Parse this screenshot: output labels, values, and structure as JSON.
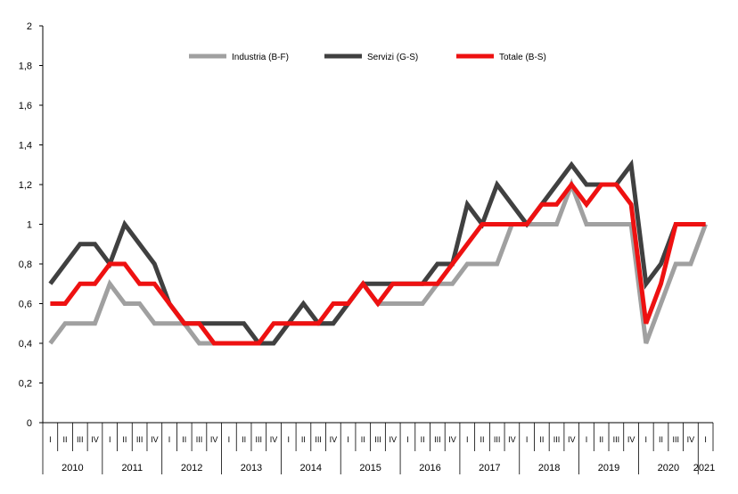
{
  "chart_data": {
    "type": "line",
    "ylim": [
      0,
      2
    ],
    "yticks": [
      "0",
      "0,2",
      "0,4",
      "0,6",
      "0,8",
      "1",
      "1,2",
      "1,4",
      "1,6",
      "1,8",
      "2"
    ],
    "years": [
      "2010",
      "2011",
      "2012",
      "2013",
      "2014",
      "2015",
      "2016",
      "2017",
      "2018",
      "2019",
      "2020",
      "2021"
    ],
    "quarters": [
      "I",
      "II",
      "III",
      "IV"
    ],
    "x": [
      "2010 I",
      "2010 II",
      "2010 III",
      "2010 IV",
      "2011 I",
      "2011 II",
      "2011 III",
      "2011 IV",
      "2012 I",
      "2012 II",
      "2012 III",
      "2012 IV",
      "2013 I",
      "2013 II",
      "2013 III",
      "2013 IV",
      "2014 I",
      "2014 II",
      "2014 III",
      "2014 IV",
      "2015 I",
      "2015 II",
      "2015 III",
      "2015 IV",
      "2016 I",
      "2016 II",
      "2016 III",
      "2016 IV",
      "2017 I",
      "2017 II",
      "2017 III",
      "2017 IV",
      "2018 I",
      "2018 II",
      "2018 III",
      "2018 IV",
      "2019 I",
      "2019 II",
      "2019 III",
      "2019 IV",
      "2020 I",
      "2020 II",
      "2020 III",
      "2020 IV",
      "2021 I"
    ],
    "legend_position": "top-center",
    "grid": false,
    "series": [
      {
        "name": "Industria (B-F)",
        "color": "#a0a0a0",
        "values": [
          0.4,
          0.5,
          0.5,
          0.5,
          0.7,
          0.6,
          0.6,
          0.5,
          0.5,
          0.5,
          0.4,
          0.4,
          0.4,
          0.4,
          0.4,
          0.4,
          0.5,
          0.5,
          0.5,
          0.5,
          0.6,
          0.7,
          0.6,
          0.6,
          0.6,
          0.6,
          0.7,
          0.7,
          0.8,
          0.8,
          0.8,
          1.0,
          1.0,
          1.0,
          1.0,
          1.2,
          1.0,
          1.0,
          1.0,
          1.0,
          0.4,
          0.6,
          0.8,
          0.8,
          1.0
        ]
      },
      {
        "name": "Servizi (G-S)",
        "color": "#404040",
        "values": [
          0.7,
          0.8,
          0.9,
          0.9,
          0.8,
          1.0,
          0.9,
          0.8,
          0.6,
          0.5,
          0.5,
          0.5,
          0.5,
          0.5,
          0.4,
          0.4,
          0.5,
          0.6,
          0.5,
          0.5,
          0.6,
          0.7,
          0.7,
          0.7,
          0.7,
          0.7,
          0.8,
          0.8,
          1.1,
          1.0,
          1.2,
          1.1,
          1.0,
          1.1,
          1.2,
          1.3,
          1.2,
          1.2,
          1.2,
          1.3,
          0.7,
          0.8,
          1.0,
          1.0,
          1.0
        ]
      },
      {
        "name": "Totale (B-S)",
        "color": "#ee1111",
        "values": [
          0.6,
          0.6,
          0.7,
          0.7,
          0.8,
          0.8,
          0.7,
          0.7,
          0.6,
          0.5,
          0.5,
          0.4,
          0.4,
          0.4,
          0.4,
          0.5,
          0.5,
          0.5,
          0.5,
          0.6,
          0.6,
          0.7,
          0.6,
          0.7,
          0.7,
          0.7,
          0.7,
          0.8,
          0.9,
          1.0,
          1.0,
          1.0,
          1.0,
          1.1,
          1.1,
          1.2,
          1.1,
          1.2,
          1.2,
          1.1,
          0.5,
          0.7,
          1.0,
          1.0,
          1.0
        ]
      }
    ]
  }
}
